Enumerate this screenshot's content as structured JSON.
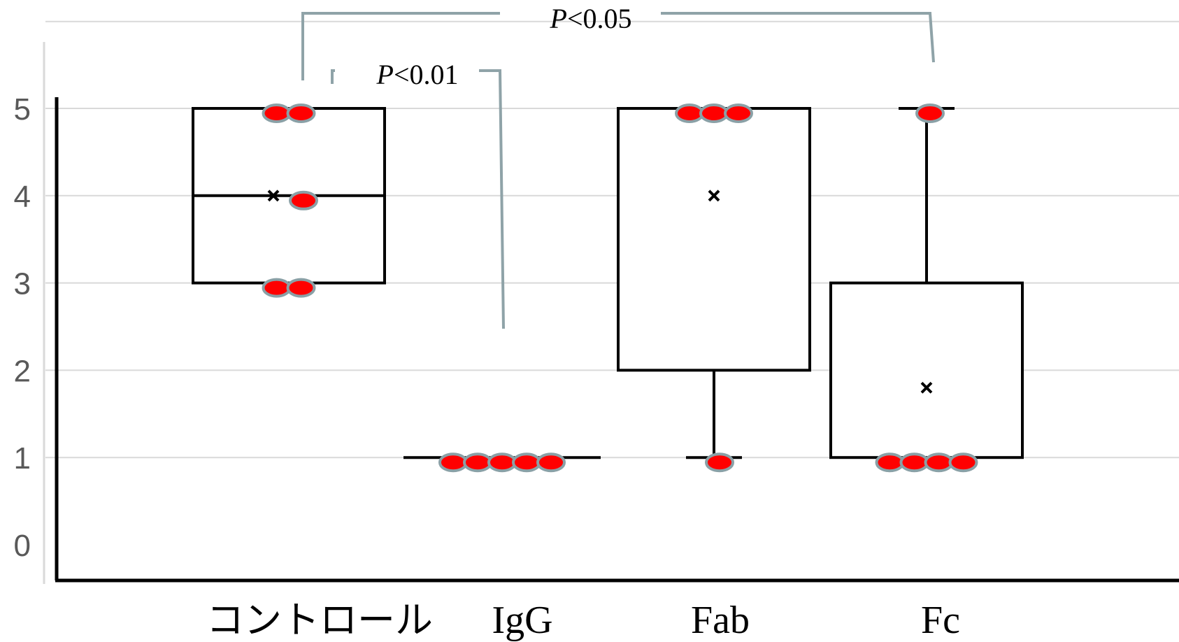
{
  "chart_data": {
    "type": "box",
    "title": "",
    "xlabel": "",
    "ylabel": "",
    "ylim": [
      0,
      5
    ],
    "yticks": [
      "0",
      "1",
      "2",
      "3",
      "4",
      "5"
    ],
    "grid": true,
    "legend": "none",
    "colors": {
      "box": "#000000",
      "point_fill": "#ff0000",
      "point_edge": "#8aa0a6",
      "gridline": "#d9d9d9",
      "bracket": "#8fa3a8"
    },
    "categories": [
      "コントロール",
      "IgG",
      "Fab",
      "Fc"
    ],
    "groups": [
      {
        "name": "コントロール",
        "min": 3,
        "q1": 3,
        "median": 4,
        "q3": 5,
        "max": 5,
        "mean": 4,
        "points": [
          5,
          5,
          4,
          3,
          3
        ]
      },
      {
        "name": "IgG",
        "min": 1,
        "q1": 1,
        "median": 1,
        "q3": 1,
        "max": 1,
        "mean": 1,
        "points": [
          1,
          1,
          1,
          1,
          1
        ]
      },
      {
        "name": "Fab",
        "min": 1,
        "q1": 2,
        "median": 5,
        "q3": 5,
        "max": 5,
        "mean": 4,
        "points": [
          5,
          5,
          5,
          1
        ]
      },
      {
        "name": "Fc",
        "min": 1,
        "q1": 1,
        "median": 1,
        "q3": 3,
        "max": 5,
        "mean": 1.8,
        "points": [
          5,
          1,
          1,
          1,
          1
        ]
      }
    ],
    "annotations": [
      {
        "from": "コントロール",
        "to": "IgG",
        "p_symbol": "P",
        "p_rest": "<0.01"
      },
      {
        "from": "コントロール",
        "to": "Fc",
        "p_symbol": "P",
        "p_rest": "<0.05"
      }
    ]
  }
}
